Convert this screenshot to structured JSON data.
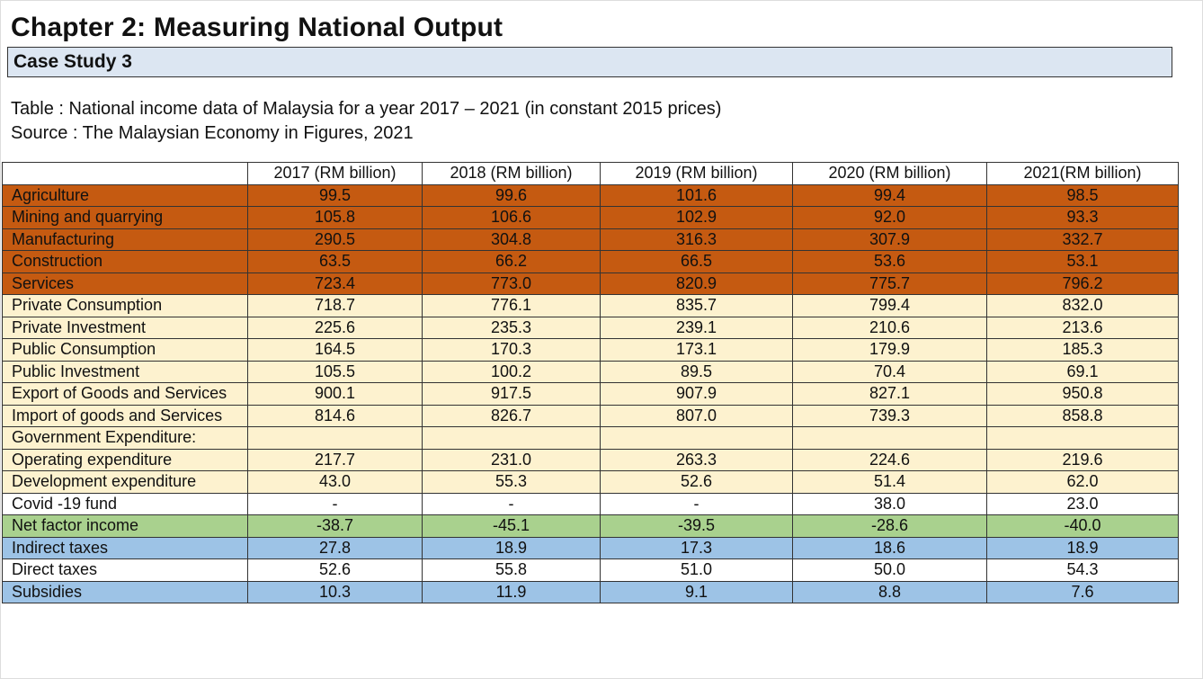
{
  "header": {
    "title": "Chapter 2: Measuring National Output",
    "subtitle": "Case Study 3"
  },
  "caption": [
    "Table : National income data of Malaysia for a year 2017 – 2021 (in constant 2015 prices)",
    "Source : The Malaysian Economy in Figures, 2021"
  ],
  "table": {
    "header": [
      "2017 (RM billion)",
      "2018 (RM billion)",
      "2019 (RM billion)",
      "2020 (RM billion)",
      "2021(RM billion)"
    ],
    "rows": [
      {
        "label": "Agriculture",
        "color": "#c55a11",
        "values": [
          "99.5",
          "99.6",
          "101.6",
          "99.4",
          "98.5"
        ]
      },
      {
        "label": "Mining and quarrying",
        "color": "#c55a11",
        "values": [
          "105.8",
          "106.6",
          "102.9",
          "92.0",
          "93.3"
        ]
      },
      {
        "label": "Manufacturing",
        "color": "#c55a11",
        "values": [
          "290.5",
          "304.8",
          "316.3",
          "307.9",
          "332.7"
        ]
      },
      {
        "label": "Construction",
        "color": "#c55a11",
        "values": [
          "63.5",
          "66.2",
          "66.5",
          "53.6",
          "53.1"
        ]
      },
      {
        "label": "Services",
        "color": "#c55a11",
        "values": [
          "723.4",
          "773.0",
          "820.9",
          "775.7",
          "796.2"
        ]
      },
      {
        "label": "Private Consumption",
        "color": "#fdf2cf",
        "values": [
          "718.7",
          "776.1",
          "835.7",
          "799.4",
          "832.0"
        ]
      },
      {
        "label": "Private Investment",
        "color": "#fdf2cf",
        "values": [
          "225.6",
          "235.3",
          "239.1",
          "210.6",
          "213.6"
        ]
      },
      {
        "label": "Public Consumption",
        "color": "#fdf2cf",
        "values": [
          "164.5",
          "170.3",
          "173.1",
          "179.9",
          "185.3"
        ]
      },
      {
        "label": "Public Investment",
        "color": "#fdf2cf",
        "values": [
          "105.5",
          "100.2",
          "89.5",
          "70.4",
          "69.1"
        ]
      },
      {
        "label": "Export of Goods and Services",
        "color": "#fdf2cf",
        "values": [
          "900.1",
          "917.5",
          "907.9",
          "827.1",
          "950.8"
        ]
      },
      {
        "label": "Import of goods and Services",
        "color": "#fdf2cf",
        "values": [
          "814.6",
          "826.7",
          "807.0",
          "739.3",
          "858.8"
        ]
      },
      {
        "label": "Government Expenditure:",
        "color": "#fdf2cf",
        "values": [
          null,
          null,
          null,
          null,
          null
        ]
      },
      {
        "label": "Operating expenditure",
        "color": "#fdf2cf",
        "values": [
          "217.7",
          "231.0",
          "263.3",
          "224.6",
          "219.6"
        ]
      },
      {
        "label": "Development expenditure",
        "color": "#fdf2cf",
        "values": [
          "43.0",
          "55.3",
          "52.6",
          "51.4",
          "62.0"
        ]
      },
      {
        "label": "Covid -19 fund",
        "color": "#ffffff",
        "values": [
          "-",
          "-",
          "-",
          "38.0",
          "23.0"
        ]
      },
      {
        "label": "Net factor income",
        "color": "#a9d18e",
        "values": [
          "-38.7",
          "-45.1",
          "-39.5",
          "-28.6",
          "-40.0"
        ]
      },
      {
        "label": "Indirect taxes",
        "color": "#9dc3e6",
        "values": [
          "27.8",
          "18.9",
          "17.3",
          "18.6",
          "18.9"
        ]
      },
      {
        "label": "Direct taxes",
        "color": "#ffffff",
        "values": [
          "52.6",
          "55.8",
          "51.0",
          "50.0",
          "54.3"
        ]
      },
      {
        "label": "Subsidies",
        "color": "#9dc3e6",
        "values": [
          "10.3",
          "11.9",
          "9.1",
          "8.8",
          "7.6"
        ]
      }
    ]
  }
}
